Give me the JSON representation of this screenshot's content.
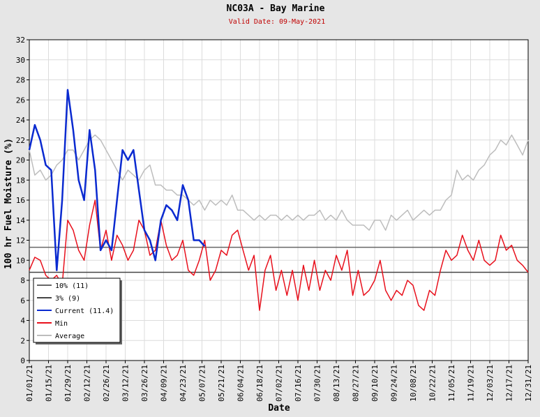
{
  "chart_data": {
    "type": "line",
    "title": "NC03A - Bay Marine",
    "subtitle": "Valid Date: 09-May-2021",
    "xlabel": "Date",
    "ylabel": "100 hr Fuel Moisture (%)",
    "x": [
      "01/01/21",
      "01/05/21",
      "01/09/21",
      "01/13/21",
      "01/17/21",
      "01/21/21",
      "01/25/21",
      "01/29/21",
      "02/02/21",
      "02/06/21",
      "02/10/21",
      "02/14/21",
      "02/18/21",
      "02/22/21",
      "02/26/21",
      "03/02/21",
      "03/06/21",
      "03/10/21",
      "03/14/21",
      "03/18/21",
      "03/22/21",
      "03/26/21",
      "03/30/21",
      "04/03/21",
      "04/07/21",
      "04/11/21",
      "04/15/21",
      "04/19/21",
      "04/23/21",
      "04/27/21",
      "05/01/21",
      "05/05/21",
      "05/09/21",
      "05/13/21",
      "05/17/21",
      "05/21/21",
      "05/25/21",
      "05/29/21",
      "06/02/21",
      "06/06/21",
      "06/10/21",
      "06/14/21",
      "06/18/21",
      "06/22/21",
      "06/26/21",
      "06/30/21",
      "07/04/21",
      "07/08/21",
      "07/12/21",
      "07/16/21",
      "07/20/21",
      "07/24/21",
      "07/28/21",
      "08/01/21",
      "08/05/21",
      "08/09/21",
      "08/13/21",
      "08/17/21",
      "08/21/21",
      "08/25/21",
      "08/29/21",
      "09/02/21",
      "09/06/21",
      "09/10/21",
      "09/14/21",
      "09/18/21",
      "09/22/21",
      "09/26/21",
      "09/30/21",
      "10/04/21",
      "10/08/21",
      "10/12/21",
      "10/16/21",
      "10/20/21",
      "10/24/21",
      "10/28/21",
      "11/01/21",
      "11/05/21",
      "11/09/21",
      "11/13/21",
      "11/17/21",
      "11/21/21",
      "11/25/21",
      "11/29/21",
      "12/03/21",
      "12/07/21",
      "12/11/21",
      "12/15/21",
      "12/19/21",
      "12/23/21",
      "12/27/21",
      "12/31/21"
    ],
    "reference_lines": [
      {
        "name": "10% (11)",
        "value": 11.3,
        "color": "#666666"
      },
      {
        "name": "3% (9)",
        "value": 8.8,
        "color": "#444444"
      }
    ],
    "series": [
      {
        "name": "Current (11.4)",
        "color": "#0a2ad0",
        "width": 2.5,
        "values": [
          21,
          23.5,
          22,
          19.5,
          19,
          9,
          16,
          27,
          23,
          18,
          16,
          23,
          19,
          11,
          12,
          11,
          16,
          21,
          20,
          21,
          17,
          13,
          12,
          10,
          14,
          15.5,
          15,
          14,
          17.5,
          16,
          12,
          12,
          11.4,
          null,
          null,
          null,
          null,
          null,
          null,
          null,
          null,
          null,
          null,
          null,
          null,
          null,
          null,
          null,
          null,
          null,
          null,
          null,
          null,
          null,
          null,
          null,
          null,
          null,
          null,
          null,
          null,
          null,
          null,
          null,
          null,
          null,
          null,
          null,
          null,
          null,
          null,
          null,
          null,
          null,
          null,
          null,
          null,
          null,
          null,
          null,
          null,
          null,
          null,
          null,
          null,
          null,
          null,
          null,
          null,
          null,
          null,
          null
        ]
      },
      {
        "name": "Min",
        "color": "#e8101c",
        "width": 1.5,
        "values": [
          9,
          10.3,
          10,
          8.5,
          8,
          8.5,
          7.5,
          14,
          13,
          11,
          10,
          13.5,
          16,
          11,
          13,
          10,
          12.5,
          11.5,
          10,
          11,
          14,
          13,
          10.5,
          11,
          14,
          11.5,
          10,
          10.5,
          12,
          9,
          8.5,
          10,
          12,
          8,
          9,
          11,
          10.5,
          12.5,
          13,
          11,
          9,
          10.5,
          5,
          9,
          10.5,
          7,
          9,
          6.5,
          9,
          6,
          9.5,
          7,
          10,
          7,
          9,
          8,
          10.5,
          9,
          11,
          6.5,
          9,
          6.5,
          7,
          8,
          10,
          7,
          6,
          7,
          6.5,
          8,
          7.5,
          5.5,
          5,
          7,
          6.5,
          9,
          11,
          10,
          10.5,
          12.5,
          11,
          10,
          12,
          10,
          9.5,
          10,
          12.5,
          11,
          11.5,
          10,
          9.5,
          8.8
        ]
      },
      {
        "name": "Average",
        "color": "#bdbdbd",
        "width": 1.5,
        "values": [
          21,
          18.5,
          19,
          18,
          18.5,
          19.5,
          20,
          21,
          21,
          20,
          21,
          22,
          22.5,
          22,
          21,
          20,
          19,
          18,
          19,
          18.5,
          18,
          19,
          19.5,
          17.5,
          17.5,
          17,
          17,
          16.5,
          16.5,
          16,
          15.5,
          16,
          15,
          16,
          15.5,
          16,
          15.5,
          16.5,
          15,
          15,
          14.5,
          14,
          14.5,
          14,
          14.5,
          14.5,
          14,
          14.5,
          14,
          14.5,
          14,
          14.5,
          14.5,
          15,
          14,
          14.5,
          14,
          15,
          14,
          13.5,
          13.5,
          13.5,
          13,
          14,
          14,
          13,
          14.5,
          14,
          14.5,
          15,
          14,
          14.5,
          15,
          14.5,
          15,
          15,
          16,
          16.5,
          19,
          18,
          18.5,
          18,
          19,
          19.5,
          20.5,
          21,
          22,
          21.5,
          22.5,
          21.5,
          20.5,
          22
        ]
      }
    ],
    "xlim": [
      "01/01/21",
      "12/31/21"
    ],
    "xticks": [
      "01/01/21",
      "01/15/21",
      "01/29/21",
      "02/12/21",
      "02/26/21",
      "03/12/21",
      "03/26/21",
      "04/09/21",
      "04/23/21",
      "05/07/21",
      "05/21/21",
      "06/04/21",
      "06/18/21",
      "07/02/21",
      "07/16/21",
      "07/30/21",
      "08/13/21",
      "08/27/21",
      "09/10/21",
      "09/24/21",
      "10/08/21",
      "10/22/21",
      "11/05/21",
      "11/19/21",
      "12/03/21",
      "12/17/21",
      "12/31/21"
    ],
    "ylim": [
      0,
      32
    ],
    "yticks": [
      0,
      2,
      4,
      6,
      8,
      10,
      12,
      14,
      16,
      18,
      20,
      22,
      24,
      26,
      28,
      30,
      32
    ],
    "grid": true,
    "legend": "lower-left"
  }
}
